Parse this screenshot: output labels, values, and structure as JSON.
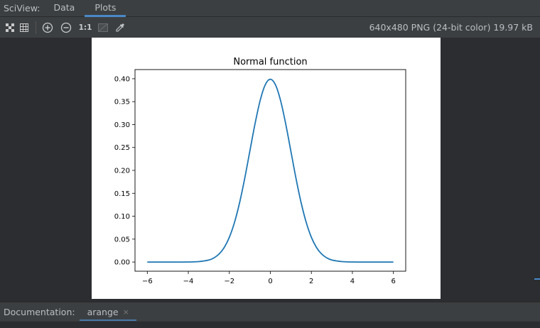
{
  "topbar": {
    "title": "SciView:",
    "tabs": [
      {
        "label": "Data",
        "active": false
      },
      {
        "label": "Plots",
        "active": true
      }
    ]
  },
  "toolbar": {
    "buttons": [
      {
        "name": "fit-screen-icon"
      },
      {
        "name": "grid-icon"
      },
      {
        "name": "zoom-in-icon"
      },
      {
        "name": "zoom-out-icon"
      },
      {
        "name": "actual-size-icon",
        "label": "1:1"
      },
      {
        "name": "background-icon"
      },
      {
        "name": "color-picker-icon"
      }
    ],
    "image_info": "640x480 PNG (24-bit color) 19.97 kB"
  },
  "chart_data": {
    "type": "line",
    "title": "Normal function",
    "xlabel": "",
    "ylabel": "",
    "xlim": [
      -6.6,
      6.6
    ],
    "ylim": [
      -0.02,
      0.42
    ],
    "x_ticks": [
      -6,
      -4,
      -2,
      0,
      2,
      4,
      6
    ],
    "x_tick_labels": [
      "−6",
      "−4",
      "−2",
      "0",
      "2",
      "4",
      "6"
    ],
    "y_ticks": [
      0.0,
      0.05,
      0.1,
      0.15,
      0.2,
      0.25,
      0.3,
      0.35,
      0.4
    ],
    "y_tick_labels": [
      "0.00",
      "0.05",
      "0.10",
      "0.15",
      "0.20",
      "0.25",
      "0.30",
      "0.35",
      "0.40"
    ],
    "grid": false,
    "series": [
      {
        "color": "#1f77b4",
        "x": [
          -6,
          -5.5,
          -5,
          -4.5,
          -4,
          -3.5,
          -3,
          -2.75,
          -2.5,
          -2.25,
          -2,
          -1.75,
          -1.5,
          -1.25,
          -1,
          -0.75,
          -0.5,
          -0.25,
          0,
          0.25,
          0.5,
          0.75,
          1,
          1.25,
          1.5,
          1.75,
          2,
          2.25,
          2.5,
          2.75,
          3,
          3.5,
          4,
          4.5,
          5,
          5.5,
          6
        ],
        "y": [
          0.0,
          0.0,
          0.0,
          0.0,
          0.0001,
          0.0009,
          0.0044,
          0.0091,
          0.0175,
          0.0317,
          0.054,
          0.0863,
          0.1295,
          0.1826,
          0.242,
          0.3011,
          0.3521,
          0.3867,
          0.3989,
          0.3867,
          0.3521,
          0.3011,
          0.242,
          0.1826,
          0.1295,
          0.0863,
          0.054,
          0.0317,
          0.0175,
          0.0091,
          0.0044,
          0.0009,
          0.0001,
          0.0,
          0.0,
          0.0,
          0.0
        ]
      }
    ]
  },
  "bottom": {
    "label": "Documentation:",
    "tab_label": "arange",
    "close_glyph": "×"
  }
}
